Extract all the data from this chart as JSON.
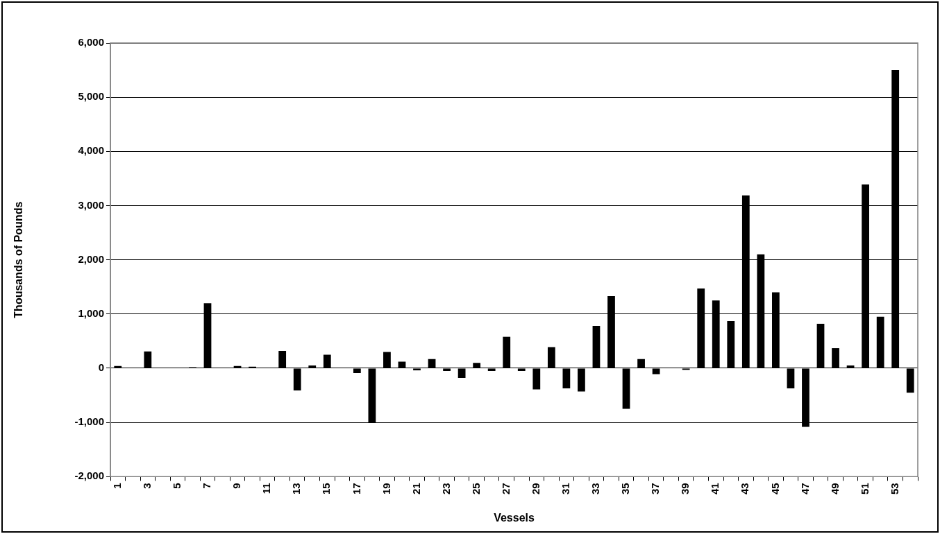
{
  "chart_data": {
    "type": "bar",
    "xlabel": "Vessels",
    "ylabel": "Thousands of Pounds",
    "categories": [
      "1",
      null,
      "3",
      null,
      "5",
      null,
      "7",
      null,
      "9",
      null,
      "11",
      null,
      "13",
      null,
      "15",
      null,
      "17",
      null,
      "19",
      null,
      "21",
      null,
      "23",
      null,
      "25",
      null,
      "27",
      null,
      "29",
      null,
      "31",
      null,
      "33",
      null,
      "35",
      null,
      "37",
      null,
      "39",
      null,
      "41",
      null,
      "43",
      null,
      "45",
      null,
      "47",
      null,
      "49",
      null,
      "51",
      null,
      "53",
      null
    ],
    "values": [
      40,
      0,
      310,
      0,
      0,
      20,
      1200,
      0,
      40,
      30,
      0,
      320,
      -410,
      50,
      250,
      0,
      -90,
      -1010,
      300,
      120,
      -40,
      170,
      -50,
      -180,
      100,
      -50,
      580,
      -50,
      -390,
      390,
      -370,
      -430,
      780,
      1330,
      -750,
      170,
      -110,
      0,
      -30,
      1470,
      1250,
      870,
      3190,
      2100,
      1400,
      -370,
      -1080,
      820,
      370,
      50,
      3390,
      950,
      5500,
      -450
    ],
    "color": "#000000",
    "ylim": [
      -2000,
      6000
    ],
    "yticks": [
      {
        "value": -2000,
        "label": "-2,000"
      },
      {
        "value": -1000,
        "label": "-1,000"
      },
      {
        "value": 0,
        "label": "0"
      },
      {
        "value": 1000,
        "label": "1,000"
      },
      {
        "value": 2000,
        "label": "2,000"
      },
      {
        "value": 3000,
        "label": "3,000"
      },
      {
        "value": 4000,
        "label": "4,000"
      },
      {
        "value": 5000,
        "label": "5,000"
      },
      {
        "value": 6000,
        "label": "6,000"
      }
    ],
    "grid": "y"
  }
}
